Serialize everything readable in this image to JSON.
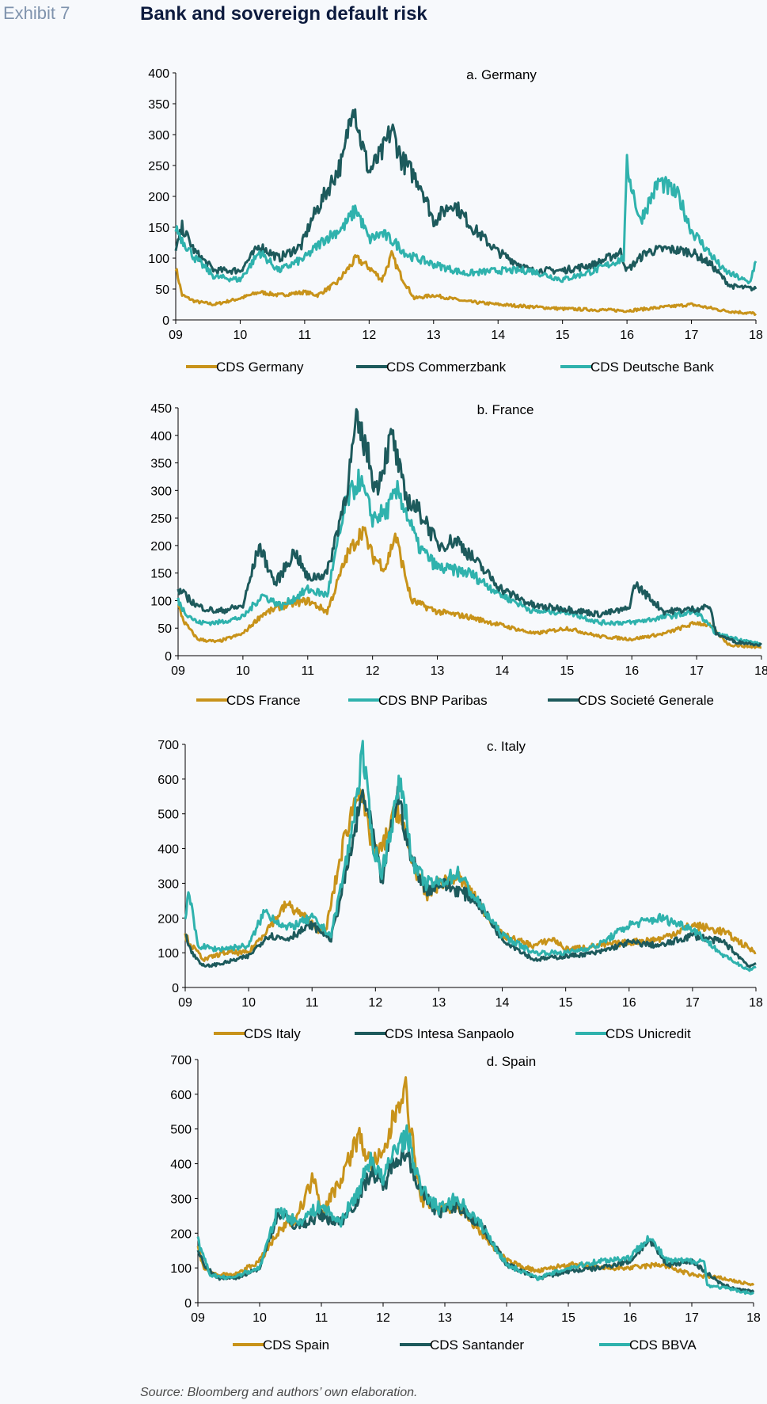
{
  "header": {
    "exhibit": "Exhibit 7",
    "title": "Bank and sovereign default risk"
  },
  "footer": {
    "source": "Source: Bloomberg and authors’ own elaboration."
  },
  "colors": {
    "gold": "#c8931a",
    "dark_teal": "#1d5a5c",
    "teal": "#2fb2ad"
  },
  "chart_data": [
    {
      "type": "line",
      "title": "a. Germany",
      "xlabel": "",
      "ylabel": "",
      "xlim": [
        9,
        18
      ],
      "ylim": [
        0,
        400
      ],
      "yticks": [
        0,
        50,
        100,
        150,
        200,
        250,
        300,
        350,
        400
      ],
      "xtick_labels": [
        "09",
        "10",
        "11",
        "12",
        "13",
        "14",
        "15",
        "16",
        "17",
        "18"
      ],
      "grid": false,
      "legend": "bottom",
      "series": [
        {
          "name": "CDS Germany",
          "color": "#c8931a",
          "x": [
            9.0,
            9.1,
            9.3,
            9.6,
            10.0,
            10.3,
            10.6,
            11.0,
            11.2,
            11.5,
            11.8,
            12.0,
            12.2,
            12.35,
            12.5,
            12.7,
            13.0,
            13.5,
            14.0,
            15.0,
            16.0,
            16.5,
            17.0,
            17.5,
            18.0
          ],
          "y": [
            85,
            40,
            30,
            25,
            35,
            45,
            40,
            45,
            40,
            60,
            100,
            85,
            65,
            105,
            70,
            35,
            40,
            30,
            25,
            18,
            15,
            20,
            25,
            15,
            10
          ]
        },
        {
          "name": "CDS Commerzbank",
          "color": "#1d5a5c",
          "x": [
            9.0,
            9.1,
            9.3,
            9.6,
            10.0,
            10.3,
            10.6,
            10.95,
            11.1,
            11.3,
            11.6,
            11.75,
            11.85,
            12.0,
            12.2,
            12.35,
            12.5,
            12.8,
            13.0,
            13.3,
            13.6,
            14.0,
            14.5,
            15.0,
            15.5,
            15.9,
            16.0,
            16.3,
            16.6,
            17.0,
            17.3,
            17.6,
            18.0
          ],
          "y": [
            110,
            150,
            110,
            80,
            80,
            120,
            100,
            120,
            160,
            200,
            260,
            360,
            300,
            240,
            270,
            310,
            260,
            220,
            160,
            190,
            150,
            110,
            80,
            80,
            90,
            110,
            80,
            110,
            115,
            110,
            90,
            55,
            50
          ]
        },
        {
          "name": "CDS Deutsche Bank",
          "color": "#2fb2ad",
          "x": [
            9.0,
            9.1,
            9.3,
            9.6,
            10.0,
            10.3,
            10.6,
            11.0,
            11.3,
            11.6,
            11.8,
            12.0,
            12.2,
            12.4,
            12.6,
            13.0,
            13.5,
            14.0,
            14.5,
            15.0,
            15.5,
            15.95,
            16.0,
            16.2,
            16.5,
            16.8,
            17.0,
            17.5,
            17.9,
            18.0
          ],
          "y": [
            150,
            130,
            100,
            70,
            65,
            110,
            80,
            100,
            130,
            150,
            180,
            130,
            140,
            125,
            105,
            90,
            75,
            80,
            80,
            65,
            80,
            100,
            250,
            160,
            225,
            200,
            145,
            80,
            60,
            95
          ]
        }
      ]
    },
    {
      "type": "line",
      "title": "b. France",
      "xlabel": "",
      "ylabel": "",
      "xlim": [
        9,
        18
      ],
      "ylim": [
        0,
        450
      ],
      "yticks": [
        0,
        50,
        100,
        150,
        200,
        250,
        300,
        350,
        400,
        450
      ],
      "xtick_labels": [
        "09",
        "10",
        "11",
        "12",
        "13",
        "14",
        "15",
        "16",
        "17",
        "18"
      ],
      "grid": false,
      "legend": "bottom",
      "series": [
        {
          "name": "CDS France",
          "color": "#c8931a",
          "x": [
            9.0,
            9.1,
            9.3,
            9.6,
            10.0,
            10.3,
            10.6,
            11.0,
            11.3,
            11.6,
            11.85,
            12.0,
            12.2,
            12.35,
            12.6,
            13.0,
            13.5,
            14.0,
            14.5,
            15.0,
            15.5,
            16.0,
            16.5,
            17.0,
            17.2,
            17.5,
            18.0
          ],
          "y": [
            90,
            60,
            30,
            25,
            40,
            75,
            90,
            100,
            80,
            180,
            230,
            180,
            160,
            220,
            100,
            80,
            70,
            55,
            40,
            50,
            35,
            30,
            40,
            60,
            55,
            20,
            15
          ]
        },
        {
          "name": "CDS BNP Paribas",
          "color": "#2fb2ad",
          "x": [
            9.0,
            9.1,
            9.3,
            9.6,
            10.0,
            10.3,
            10.6,
            11.0,
            11.3,
            11.6,
            11.8,
            12.0,
            12.2,
            12.4,
            12.7,
            13.0,
            13.5,
            14.0,
            14.5,
            15.0,
            15.5,
            16.0,
            16.5,
            17.0,
            17.3,
            18.0
          ],
          "y": [
            100,
            80,
            60,
            60,
            70,
            110,
            90,
            120,
            110,
            280,
            320,
            250,
            260,
            300,
            200,
            160,
            150,
            110,
            80,
            80,
            60,
            60,
            70,
            80,
            40,
            20
          ]
        },
        {
          "name": "CDS Societé Generale",
          "color": "#1d5a5c",
          "x": [
            9.0,
            9.1,
            9.3,
            9.6,
            10.0,
            10.25,
            10.5,
            10.8,
            11.0,
            11.3,
            11.6,
            11.75,
            11.9,
            12.05,
            12.3,
            12.5,
            12.8,
            13.0,
            13.3,
            13.6,
            14.0,
            14.5,
            15.0,
            15.5,
            15.95,
            16.05,
            16.5,
            17.0,
            17.2,
            17.3,
            17.6,
            18.0
          ],
          "y": [
            120,
            110,
            90,
            80,
            90,
            200,
            130,
            190,
            140,
            150,
            300,
            420,
            380,
            300,
            400,
            290,
            250,
            200,
            210,
            170,
            120,
            90,
            85,
            75,
            85,
            130,
            80,
            85,
            90,
            40,
            25,
            20
          ]
        }
      ]
    },
    {
      "type": "line",
      "title": "c. Italy",
      "xlabel": "",
      "ylabel": "",
      "xlim": [
        9,
        18
      ],
      "ylim": [
        0,
        700
      ],
      "yticks": [
        0,
        100,
        200,
        300,
        400,
        500,
        600,
        700
      ],
      "xtick_labels": [
        "09",
        "10",
        "11",
        "12",
        "13",
        "14",
        "15",
        "16",
        "17",
        "18"
      ],
      "grid": false,
      "legend": "bottom",
      "series": [
        {
          "name": "CDS Italy",
          "color": "#c8931a",
          "x": [
            9.0,
            9.1,
            9.3,
            9.6,
            10.0,
            10.3,
            10.6,
            10.9,
            11.2,
            11.5,
            11.75,
            11.85,
            12.0,
            12.1,
            12.35,
            12.55,
            12.8,
            13.0,
            13.3,
            13.6,
            14.0,
            14.5,
            14.8,
            15.0,
            15.5,
            16.0,
            16.5,
            17.0,
            17.5,
            18.0
          ],
          "y": [
            150,
            120,
            80,
            100,
            100,
            170,
            240,
            200,
            150,
            420,
            590,
            480,
            380,
            400,
            520,
            380,
            260,
            300,
            320,
            250,
            150,
            120,
            140,
            110,
            120,
            130,
            140,
            180,
            160,
            100
          ]
        },
        {
          "name": "CDS Intesa Sanpaolo",
          "color": "#1d5a5c",
          "x": [
            9.0,
            9.1,
            9.3,
            9.6,
            10.0,
            10.3,
            10.6,
            11.0,
            11.3,
            11.6,
            11.8,
            11.95,
            12.1,
            12.35,
            12.55,
            12.8,
            13.0,
            13.3,
            13.6,
            14.0,
            14.5,
            15.0,
            15.5,
            16.0,
            16.5,
            17.0,
            17.5,
            17.9,
            18.0
          ],
          "y": [
            160,
            100,
            60,
            70,
            90,
            150,
            140,
            180,
            140,
            380,
            560,
            450,
            300,
            560,
            380,
            280,
            300,
            280,
            250,
            140,
            80,
            90,
            100,
            130,
            120,
            150,
            130,
            60,
            70
          ]
        },
        {
          "name": "CDS Unicredit",
          "color": "#2fb2ad",
          "x": [
            9.0,
            9.05,
            9.2,
            9.5,
            10.0,
            10.25,
            10.6,
            11.0,
            11.3,
            11.6,
            11.8,
            11.95,
            12.1,
            12.4,
            12.6,
            12.8,
            13.0,
            13.3,
            13.6,
            14.0,
            14.5,
            15.0,
            15.5,
            16.0,
            16.5,
            17.0,
            17.5,
            17.9,
            18.0
          ],
          "y": [
            200,
            280,
            120,
            110,
            120,
            220,
            170,
            200,
            150,
            420,
            680,
            420,
            330,
            600,
            350,
            300,
            300,
            330,
            250,
            150,
            100,
            100,
            120,
            180,
            200,
            170,
            90,
            50,
            60
          ]
        }
      ]
    },
    {
      "type": "line",
      "title": "d. Spain",
      "xlabel": "",
      "ylabel": "",
      "xlim": [
        9,
        18
      ],
      "ylim": [
        0,
        700
      ],
      "yticks": [
        0,
        100,
        200,
        300,
        400,
        500,
        600,
        700
      ],
      "xtick_labels": [
        "09",
        "10",
        "11",
        "12",
        "13",
        "14",
        "15",
        "16",
        "17",
        "18"
      ],
      "grid": false,
      "legend": "bottom",
      "series": [
        {
          "name": "CDS Spain",
          "color": "#c8931a",
          "x": [
            9.0,
            9.1,
            9.3,
            9.6,
            10.0,
            10.3,
            10.6,
            10.9,
            11.0,
            11.3,
            11.6,
            11.8,
            12.0,
            12.2,
            12.35,
            12.45,
            12.6,
            12.9,
            13.2,
            13.6,
            14.0,
            14.5,
            15.0,
            15.5,
            16.0,
            16.5,
            17.0,
            17.5,
            18.0
          ],
          "y": [
            160,
            100,
            80,
            80,
            120,
            200,
            250,
            370,
            260,
            350,
            480,
            400,
            420,
            550,
            630,
            500,
            300,
            270,
            280,
            200,
            120,
            90,
            110,
            100,
            100,
            110,
            80,
            70,
            50
          ]
        },
        {
          "name": "CDS Santander",
          "color": "#1d5a5c",
          "x": [
            9.0,
            9.1,
            9.3,
            9.6,
            10.0,
            10.3,
            10.6,
            11.0,
            11.3,
            11.6,
            11.8,
            12.0,
            12.2,
            12.4,
            12.6,
            12.9,
            13.2,
            13.6,
            14.0,
            14.5,
            15.0,
            15.5,
            16.0,
            16.3,
            16.6,
            17.0,
            17.5,
            18.0
          ],
          "y": [
            150,
            110,
            70,
            70,
            100,
            260,
            220,
            250,
            230,
            300,
            380,
            330,
            420,
            430,
            320,
            260,
            280,
            220,
            110,
            70,
            90,
            100,
            120,
            180,
            110,
            120,
            50,
            30
          ]
        },
        {
          "name": "CDS BBVA",
          "color": "#2fb2ad",
          "x": [
            9.0,
            9.05,
            9.2,
            9.5,
            10.0,
            10.3,
            10.6,
            11.0,
            11.3,
            11.6,
            11.8,
            12.0,
            12.2,
            12.4,
            12.6,
            12.9,
            13.2,
            13.6,
            14.0,
            14.5,
            15.0,
            15.5,
            16.0,
            16.3,
            16.6,
            17.0,
            17.2,
            17.25,
            17.6,
            18.0
          ],
          "y": [
            180,
            150,
            80,
            70,
            100,
            270,
            230,
            280,
            230,
            320,
            420,
            350,
            450,
            480,
            330,
            270,
            300,
            220,
            110,
            70,
            100,
            120,
            130,
            190,
            120,
            120,
            120,
            50,
            40,
            25
          ]
        }
      ]
    }
  ]
}
